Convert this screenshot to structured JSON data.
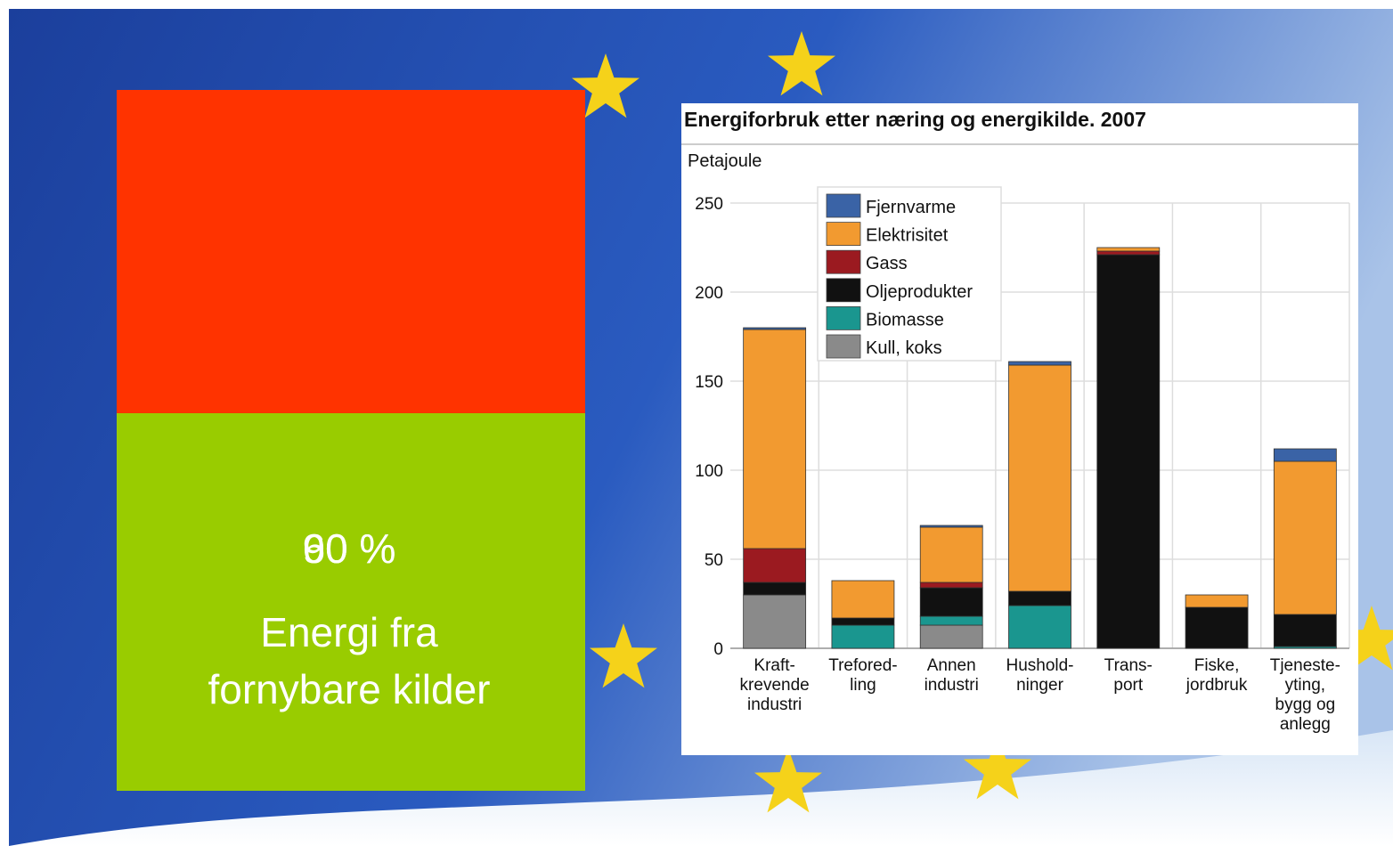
{
  "slide": {
    "percent_labels": [
      "60 %",
      "90 %"
    ],
    "caption_lines": [
      "Energi fra",
      "fornybare kilder"
    ]
  },
  "chart_data": {
    "type": "stacked_bar",
    "title": "Energiforbruk etter næring og energikilde. 2007",
    "y_label": "Petajoule",
    "categories": [
      "Kraft-\nkrevende\nindustri",
      "Trefored-\nling",
      "Annen\nindustri",
      "Hushold-\nninger",
      "Trans-\nport",
      "Fiske,\njordbruk",
      "Tjeneste-\nyting,\nbygg og\nanlegg"
    ],
    "series": [
      {
        "name": "Kull, koks",
        "color": "#8a8a8a",
        "values": [
          30,
          0,
          13,
          0,
          0,
          0,
          0
        ]
      },
      {
        "name": "Biomasse",
        "color": "#1a968f",
        "values": [
          0,
          13,
          5,
          24,
          0,
          0,
          1
        ]
      },
      {
        "name": "Oljeprodukter",
        "color": "#111111",
        "values": [
          7,
          4,
          16,
          8,
          221,
          23,
          18
        ]
      },
      {
        "name": "Gass",
        "color": "#9b1a20",
        "values": [
          19,
          0,
          3,
          0,
          2,
          0,
          0
        ]
      },
      {
        "name": "Elektrisitet",
        "color": "#f29a30",
        "values": [
          123,
          21,
          31,
          127,
          2,
          7,
          86
        ]
      },
      {
        "name": "Fjernvarme",
        "color": "#3a63a6",
        "values": [
          1,
          0,
          1,
          2,
          0,
          0,
          7
        ]
      }
    ],
    "ylim": [
      0,
      250
    ],
    "yticks": [
      0,
      50,
      100,
      150,
      200,
      250
    ],
    "grid": true,
    "legend": "top-left"
  }
}
